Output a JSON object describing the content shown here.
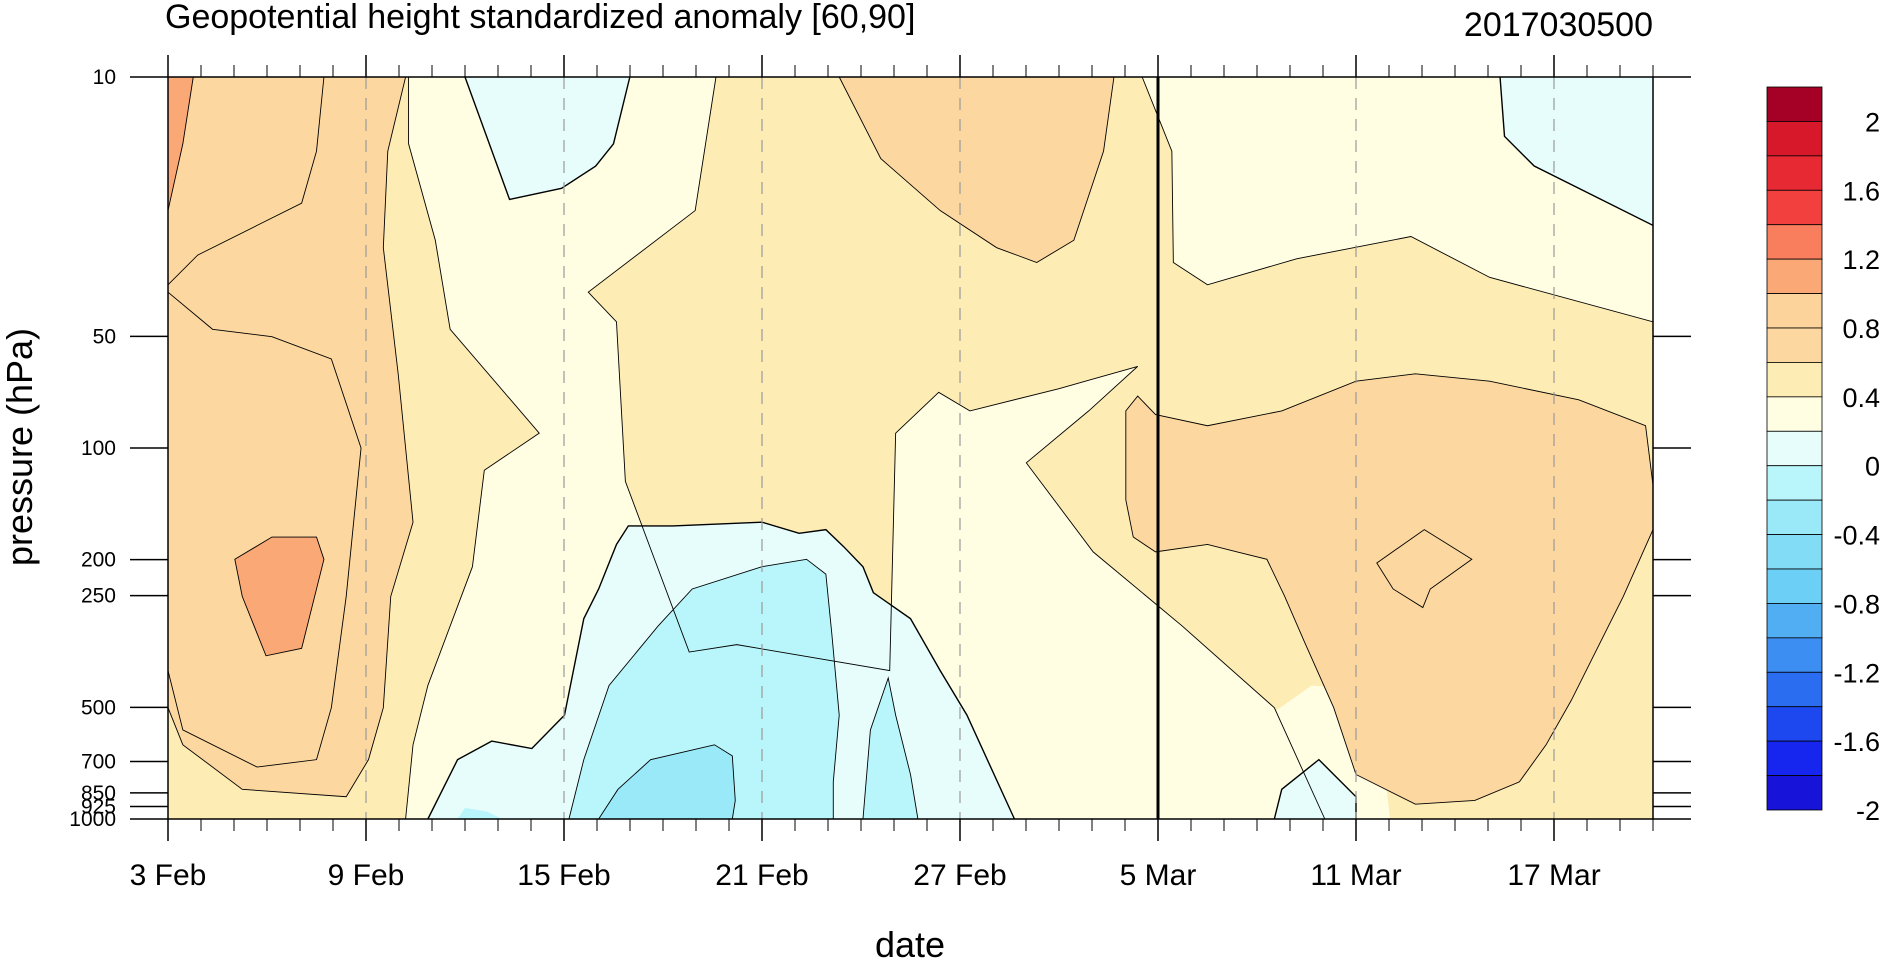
{
  "chart_data": {
    "type": "heatmap",
    "title": "Geopotential height standardized anomaly [60,90]",
    "subtitle_right": "2017030500",
    "xlabel": "date",
    "ylabel": "pressure (hPa)",
    "x_start_date": "2017-02-03",
    "x_end_date": "2017-03-20",
    "x_tick_labels": [
      "3 Feb",
      "9 Feb",
      "15 Feb",
      "21 Feb",
      "27 Feb",
      "5 Mar",
      "11 Mar",
      "17 Mar"
    ],
    "x_tick_dates": [
      "2017-02-03",
      "2017-02-09",
      "2017-02-15",
      "2017-02-21",
      "2017-02-27",
      "2017-03-05",
      "2017-03-11",
      "2017-03-17"
    ],
    "y_scale": "log",
    "y_range_hpa": [
      1000,
      10
    ],
    "y_levels_hpa": [
      10,
      50,
      100,
      200,
      250,
      500,
      700,
      850,
      925,
      1000
    ],
    "y_tick_labels": [
      "10",
      "50",
      "100",
      "200",
      "250",
      "500",
      "700",
      "850",
      "925",
      "1000"
    ],
    "current_date_line": "2017-03-05",
    "contour_levels": [
      -2,
      -1.8,
      -1.6,
      -1.4,
      -1.2,
      -1,
      -0.8,
      -0.6,
      -0.4,
      -0.2,
      0,
      0.2,
      0.4,
      0.6,
      0.8,
      1,
      1.2,
      1.4,
      1.6,
      1.8,
      2
    ],
    "colorbar_labels": [
      "2",
      "1.6",
      "1.2",
      "0.8",
      "0.4",
      "0",
      "-0.4",
      "-0.8",
      "-1.2",
      "-1.6",
      "-2"
    ],
    "colorbar_colors": [
      "#a50026",
      "#d7182a",
      "#e62932",
      "#f2403e",
      "#f87e5e",
      "#fba877",
      "#fbd39b",
      "#fcd8a0",
      "#fdecb4",
      "#fffde2",
      "#e6fdfc",
      "#b9f6fb",
      "#9ae9f8",
      "#82dcf6",
      "#6ccff5",
      "#52aef3",
      "#3c8ef2",
      "#2a6df1",
      "#1d48ef",
      "#1626ee",
      "#1713d8"
    ],
    "grid": "dashed vertical lines at labeled dates"
  }
}
